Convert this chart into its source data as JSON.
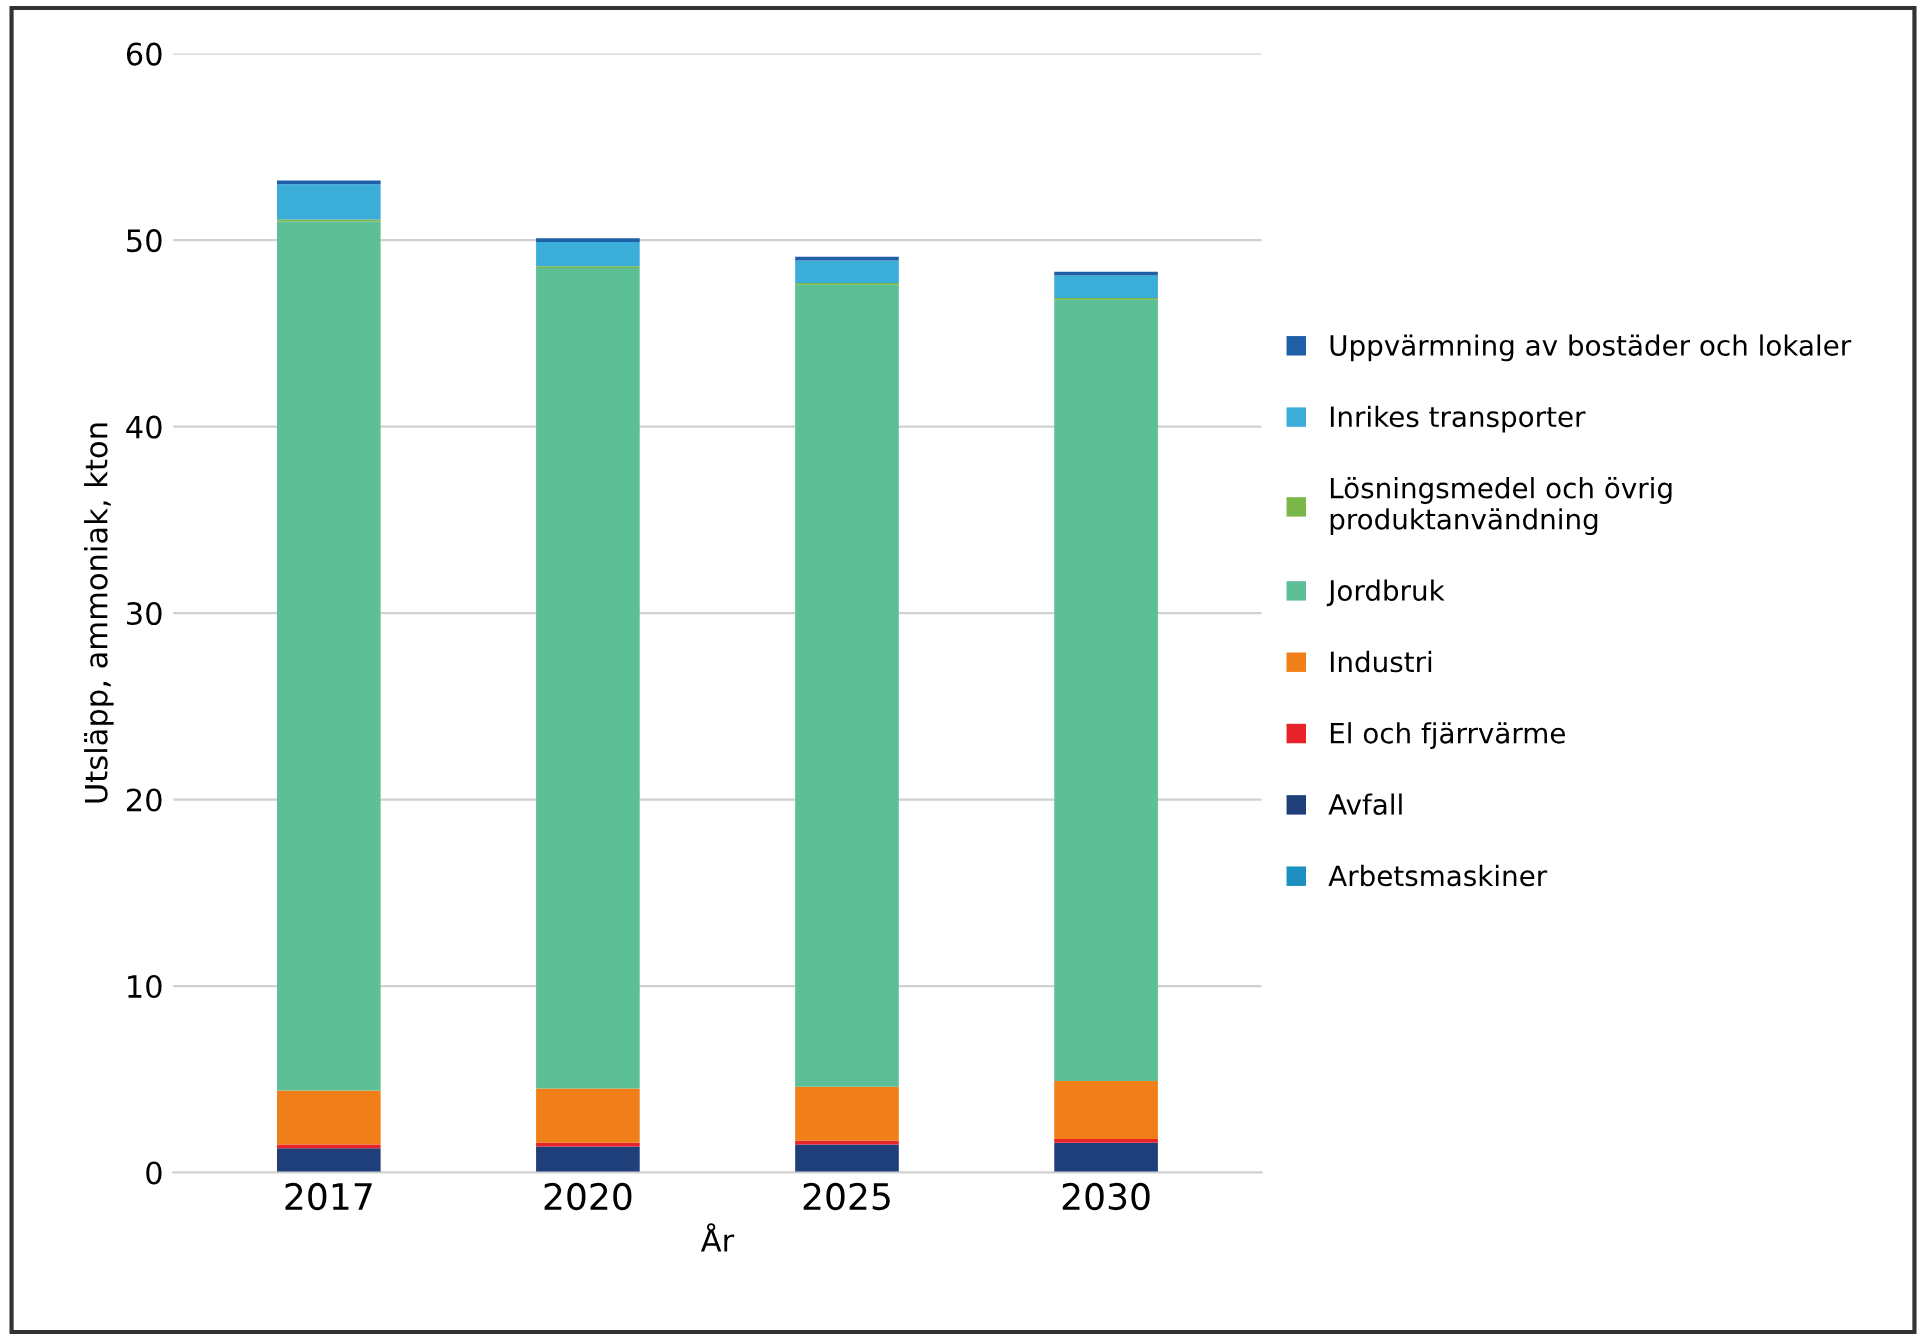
{
  "chart_data": {
    "type": "bar",
    "stacked": true,
    "xlabel": "År",
    "ylabel": "Utsläpp, ammoniak, kton",
    "categories": [
      "2017",
      "2020",
      "2025",
      "2030"
    ],
    "ylim": [
      0,
      60
    ],
    "yticks": [
      0,
      10,
      20,
      30,
      40,
      50,
      60
    ],
    "grid": "y",
    "legend": "right",
    "series": [
      {
        "name": "Arbetsmaskiner",
        "color": "#1a8fc0",
        "values": [
          null,
          null,
          null,
          null
        ]
      },
      {
        "name": "Avfall",
        "color": "#1e3f7a",
        "values": [
          1.3,
          1.4,
          1.5,
          1.6
        ]
      },
      {
        "name": "El och fjärrvärme",
        "color": "#e8232a",
        "values": [
          0.2,
          0.2,
          0.2,
          0.2
        ]
      },
      {
        "name": "Industri",
        "color": "#f07f1a",
        "values": [
          2.9,
          2.9,
          2.9,
          3.1
        ]
      },
      {
        "name": "Jordbruk",
        "color": "#5cbf95",
        "values": [
          46.6,
          44.0,
          43.0,
          41.9
        ]
      },
      {
        "name": "Lösningsmedel och övrig\nproduktanvändning",
        "color": "#7ab648",
        "values": [
          0.1,
          0.1,
          0.1,
          0.1
        ]
      },
      {
        "name": "Inrikes transporter",
        "color": "#3aaed8",
        "values": [
          1.9,
          1.3,
          1.2,
          1.2
        ]
      },
      {
        "name": "Uppvärmning av bostäder och lokaler",
        "color": "#1f5fa8",
        "values": [
          0.2,
          0.2,
          0.2,
          0.2
        ]
      }
    ]
  }
}
